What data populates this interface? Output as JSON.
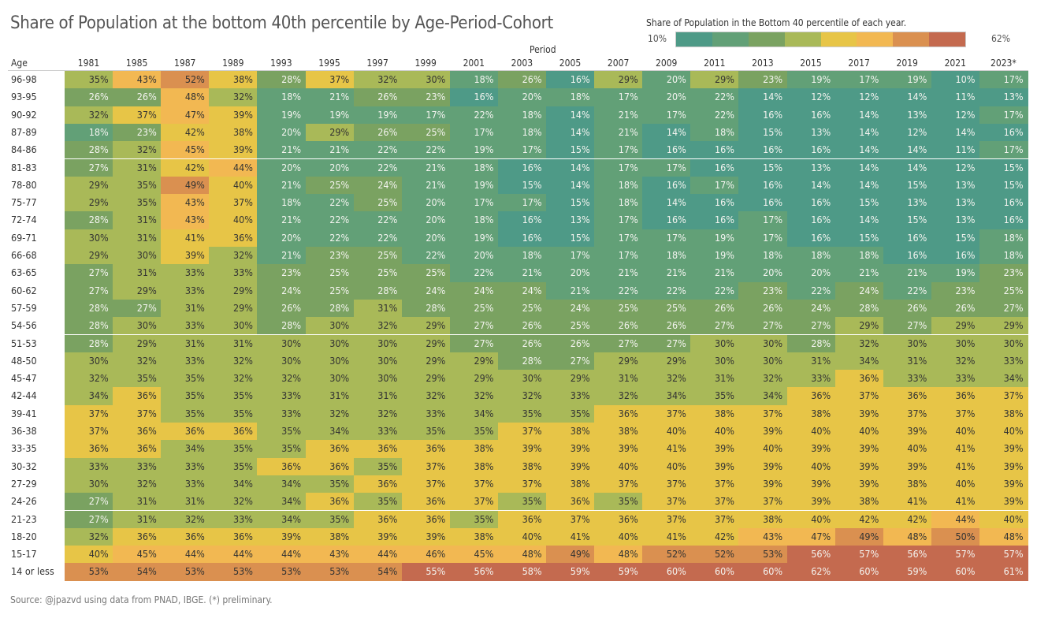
{
  "chart_data": {
    "type": "heatmap",
    "title": "Share of Population at the bottom 40th percentile by Age-Period-Cohort",
    "legend": {
      "title": "Share of Population in the Bottom 40 percentile of each year.",
      "min_label": "10%",
      "max_label": "62%",
      "range": [
        10,
        62
      ],
      "placement": "top-right",
      "colors": [
        "#4e9a87",
        "#62a077",
        "#7aa261",
        "#a9b958",
        "#e7c547",
        "#f2b852",
        "#da9050",
        "#c46a4f"
      ]
    },
    "xlabel": "Period",
    "ylabel": "Age",
    "x": [
      "1981",
      "1985",
      "1987",
      "1989",
      "1993",
      "1995",
      "1997",
      "1999",
      "2001",
      "2003",
      "2005",
      "2007",
      "2009",
      "2011",
      "2013",
      "2015",
      "2017",
      "2019",
      "2021",
      "2023*"
    ],
    "y": [
      "96-98",
      "93-95",
      "90-92",
      "87-89",
      "84-86",
      "81-83",
      "78-80",
      "75-77",
      "72-74",
      "69-71",
      "66-68",
      "63-65",
      "60-62",
      "57-59",
      "54-56",
      "51-53",
      "48-50",
      "45-47",
      "42-44",
      "39-41",
      "36-38",
      "33-35",
      "30-32",
      "27-29",
      "24-26",
      "21-23",
      "18-20",
      "15-17",
      "14 or less"
    ],
    "unit": "%",
    "values": [
      [
        35,
        43,
        52,
        38,
        28,
        37,
        32,
        30,
        18,
        26,
        16,
        29,
        20,
        29,
        23,
        19,
        17,
        19,
        10,
        17
      ],
      [
        26,
        26,
        48,
        32,
        18,
        21,
        26,
        23,
        16,
        20,
        18,
        17,
        20,
        22,
        14,
        12,
        12,
        14,
        11,
        13
      ],
      [
        32,
        37,
        47,
        39,
        19,
        19,
        19,
        17,
        22,
        18,
        14,
        21,
        17,
        22,
        16,
        16,
        14,
        13,
        12,
        17
      ],
      [
        18,
        23,
        42,
        38,
        20,
        29,
        26,
        25,
        17,
        18,
        14,
        21,
        14,
        18,
        15,
        13,
        14,
        12,
        14,
        16
      ],
      [
        28,
        32,
        45,
        39,
        21,
        21,
        22,
        22,
        19,
        17,
        15,
        17,
        16,
        16,
        16,
        16,
        14,
        14,
        11,
        17
      ],
      [
        27,
        31,
        42,
        44,
        20,
        20,
        22,
        21,
        18,
        16,
        14,
        17,
        17,
        16,
        15,
        13,
        14,
        14,
        12,
        15
      ],
      [
        29,
        35,
        49,
        40,
        21,
        25,
        24,
        21,
        19,
        15,
        14,
        18,
        16,
        17,
        16,
        14,
        14,
        15,
        13,
        15
      ],
      [
        29,
        35,
        43,
        37,
        18,
        22,
        25,
        20,
        17,
        17,
        15,
        18,
        14,
        16,
        16,
        16,
        15,
        13,
        13,
        16
      ],
      [
        28,
        31,
        43,
        40,
        21,
        22,
        22,
        20,
        18,
        16,
        13,
        17,
        16,
        16,
        17,
        16,
        14,
        15,
        13,
        16
      ],
      [
        30,
        31,
        41,
        36,
        20,
        22,
        22,
        20,
        19,
        16,
        15,
        17,
        17,
        19,
        17,
        16,
        15,
        16,
        15,
        18
      ],
      [
        29,
        30,
        39,
        32,
        21,
        23,
        25,
        22,
        20,
        18,
        17,
        17,
        18,
        19,
        18,
        18,
        18,
        16,
        16,
        18
      ],
      [
        27,
        31,
        33,
        33,
        23,
        25,
        25,
        25,
        22,
        21,
        20,
        21,
        21,
        21,
        20,
        20,
        21,
        21,
        19,
        23
      ],
      [
        27,
        29,
        33,
        29,
        24,
        25,
        28,
        24,
        24,
        24,
        21,
        22,
        22,
        22,
        23,
        22,
        24,
        22,
        23,
        25
      ],
      [
        28,
        27,
        31,
        29,
        26,
        28,
        31,
        28,
        25,
        25,
        24,
        25,
        25,
        26,
        26,
        24,
        28,
        26,
        26,
        27
      ],
      [
        28,
        30,
        33,
        30,
        28,
        30,
        32,
        29,
        27,
        26,
        25,
        26,
        26,
        27,
        27,
        27,
        29,
        27,
        29,
        29
      ],
      [
        28,
        29,
        31,
        31,
        30,
        30,
        30,
        29,
        27,
        26,
        26,
        27,
        27,
        30,
        30,
        28,
        32,
        30,
        30,
        30
      ],
      [
        30,
        32,
        33,
        32,
        30,
        30,
        30,
        29,
        29,
        28,
        27,
        29,
        29,
        30,
        30,
        31,
        34,
        31,
        32,
        33
      ],
      [
        32,
        35,
        35,
        32,
        32,
        30,
        30,
        29,
        29,
        30,
        29,
        31,
        32,
        31,
        32,
        33,
        36,
        33,
        33,
        34
      ],
      [
        34,
        36,
        35,
        35,
        33,
        31,
        31,
        32,
        32,
        32,
        33,
        32,
        34,
        35,
        34,
        36,
        37,
        36,
        36,
        37
      ],
      [
        37,
        37,
        35,
        35,
        33,
        32,
        32,
        33,
        34,
        35,
        35,
        36,
        37,
        38,
        37,
        38,
        39,
        37,
        37,
        38
      ],
      [
        37,
        36,
        36,
        36,
        35,
        34,
        33,
        35,
        35,
        37,
        38,
        38,
        40,
        40,
        39,
        40,
        40,
        39,
        40,
        40
      ],
      [
        36,
        36,
        34,
        35,
        35,
        36,
        36,
        36,
        38,
        39,
        39,
        39,
        41,
        39,
        40,
        39,
        39,
        40,
        41,
        39
      ],
      [
        33,
        33,
        33,
        35,
        36,
        36,
        35,
        37,
        38,
        38,
        39,
        40,
        40,
        39,
        39,
        40,
        39,
        39,
        41,
        39
      ],
      [
        30,
        32,
        33,
        34,
        34,
        35,
        36,
        37,
        37,
        37,
        38,
        37,
        37,
        37,
        39,
        39,
        39,
        38,
        40,
        39
      ],
      [
        27,
        31,
        31,
        32,
        34,
        36,
        35,
        36,
        37,
        35,
        36,
        35,
        37,
        37,
        37,
        39,
        38,
        41,
        41,
        39
      ],
      [
        27,
        31,
        32,
        33,
        34,
        35,
        36,
        36,
        35,
        36,
        37,
        36,
        37,
        37,
        38,
        40,
        42,
        42,
        44,
        40
      ],
      [
        32,
        36,
        36,
        36,
        39,
        38,
        39,
        39,
        38,
        40,
        41,
        40,
        41,
        42,
        43,
        47,
        49,
        48,
        50,
        48
      ],
      [
        40,
        45,
        44,
        44,
        44,
        43,
        44,
        46,
        45,
        48,
        49,
        48,
        52,
        52,
        53,
        56,
        57,
        56,
        57,
        57
      ],
      [
        53,
        54,
        53,
        53,
        53,
        53,
        54,
        55,
        56,
        58,
        59,
        59,
        60,
        60,
        60,
        62,
        60,
        59,
        60,
        61
      ]
    ],
    "source": "Source:  @jpazvd using data from PNAD, IBGE. (*) preliminary."
  }
}
